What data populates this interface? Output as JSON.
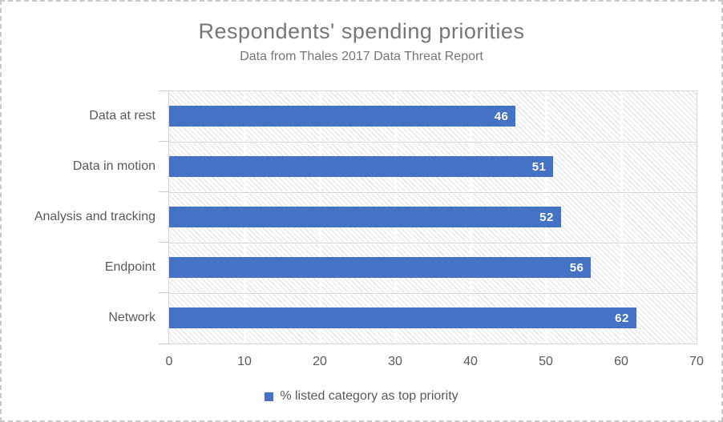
{
  "title": "Respondents' spending priorities",
  "subtitle": "Data from Thales 2017 Data Threat Report",
  "legend": {
    "label": "% listed category as top priority",
    "marker_color": "#4472C4"
  },
  "colors": {
    "bar": "#4472C4",
    "title_text": "#767676",
    "axis_text": "#595959",
    "gridline": "#ffffff",
    "plot_border": "#d9d9d9",
    "data_label_text": "#ffffff"
  },
  "chart_data": {
    "type": "bar",
    "orientation": "horizontal",
    "title": "Respondents' spending priorities",
    "subtitle": "Data from Thales 2017 Data Threat Report",
    "categories": [
      "Data at rest",
      "Data in motion",
      "Analysis and tracking",
      "Endpoint",
      "Network"
    ],
    "values": [
      46,
      51,
      52,
      56,
      62
    ],
    "series": [
      {
        "name": "% listed category as top priority",
        "values": [
          46,
          51,
          52,
          56,
          62
        ]
      }
    ],
    "xlabel": "",
    "ylabel": "",
    "xlim": [
      0,
      70
    ],
    "xticks": [
      0,
      10,
      20,
      30,
      40,
      50,
      60,
      70
    ],
    "grid": true,
    "data_labels": "inside-end",
    "legend_position": "bottom",
    "plot_background": "diagonal-hatch"
  }
}
